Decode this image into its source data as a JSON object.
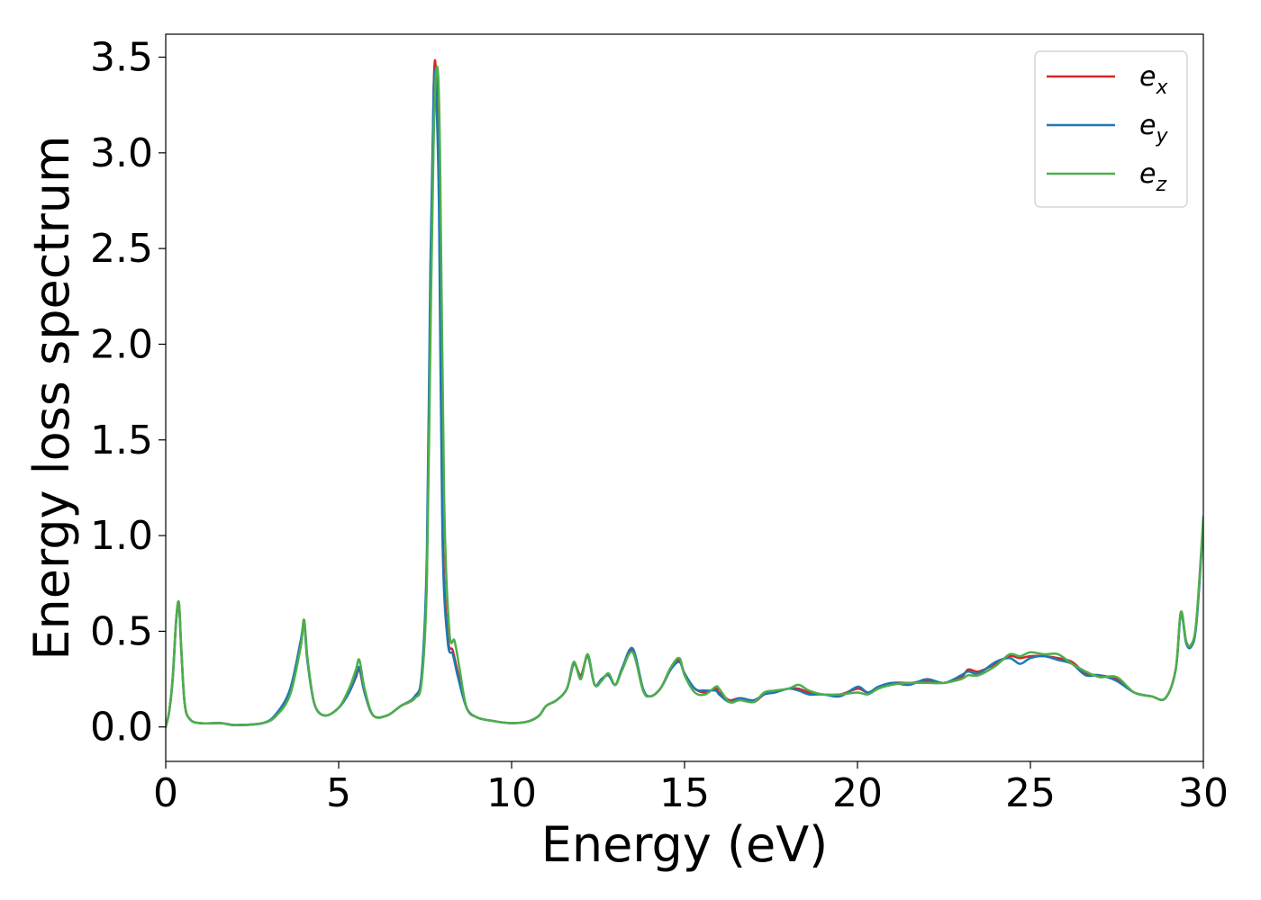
{
  "chart_data": {
    "type": "line",
    "xlabel": "Energy (eV)",
    "ylabel": "Energy loss spectrum",
    "xlim": [
      0,
      30
    ],
    "ylim": [
      -0.18,
      3.62
    ],
    "xticks": [
      0,
      5,
      10,
      15,
      20,
      25,
      30
    ],
    "xtick_labels": [
      "0",
      "5",
      "10",
      "15",
      "20",
      "25",
      "30"
    ],
    "yticks": [
      0.0,
      0.5,
      1.0,
      1.5,
      2.0,
      2.5,
      3.0,
      3.5
    ],
    "ytick_labels": [
      "0.0",
      "0.5",
      "1.0",
      "1.5",
      "2.0",
      "2.5",
      "3.0",
      "3.5"
    ],
    "grid": false,
    "legend_position": "top-right",
    "series": [
      {
        "name": "e_x",
        "label_base": "e",
        "label_sub": "x",
        "color": "#d62728",
        "x": [
          0,
          0.1,
          0.2,
          0.3,
          0.38,
          0.45,
          0.55,
          0.7,
          1.0,
          1.6,
          2.0,
          2.8,
          3.2,
          3.6,
          3.9,
          4.0,
          4.1,
          4.3,
          4.6,
          5.0,
          5.3,
          5.5,
          5.6,
          5.75,
          6.0,
          6.4,
          6.8,
          7.2,
          7.4,
          7.55,
          7.65,
          7.75,
          7.82,
          7.9,
          8.0,
          8.15,
          8.3,
          8.45,
          8.7,
          9.0,
          9.5,
          10.0,
          10.5,
          10.8,
          11.0,
          11.3,
          11.6,
          11.8,
          12.0,
          12.2,
          12.4,
          12.6,
          12.8,
          13.0,
          13.2,
          13.5,
          13.8,
          14.0,
          14.3,
          14.6,
          14.85,
          15.0,
          15.3,
          15.6,
          15.9,
          16.0,
          16.3,
          16.6,
          17.0,
          17.3,
          17.6,
          18.0,
          18.3,
          18.6,
          19.0,
          19.5,
          20.0,
          20.3,
          20.6,
          21.0,
          21.5,
          22.0,
          22.5,
          23.0,
          23.2,
          23.5,
          24.0,
          24.4,
          24.7,
          25.0,
          25.4,
          25.8,
          26.2,
          26.6,
          27.0,
          27.5,
          28.0,
          28.5,
          28.9,
          29.2,
          29.35,
          29.5,
          29.65,
          29.8,
          30.0
        ],
        "y": [
          0.0,
          0.08,
          0.25,
          0.55,
          0.65,
          0.4,
          0.12,
          0.04,
          0.02,
          0.02,
          0.01,
          0.02,
          0.06,
          0.18,
          0.42,
          0.56,
          0.35,
          0.12,
          0.06,
          0.1,
          0.18,
          0.26,
          0.3,
          0.18,
          0.06,
          0.06,
          0.11,
          0.15,
          0.25,
          0.8,
          2.2,
          3.36,
          3.4,
          2.9,
          1.1,
          0.48,
          0.4,
          0.28,
          0.1,
          0.05,
          0.03,
          0.02,
          0.03,
          0.06,
          0.11,
          0.14,
          0.2,
          0.33,
          0.27,
          0.37,
          0.22,
          0.25,
          0.27,
          0.22,
          0.3,
          0.4,
          0.2,
          0.16,
          0.2,
          0.3,
          0.35,
          0.28,
          0.2,
          0.18,
          0.2,
          0.18,
          0.14,
          0.15,
          0.13,
          0.17,
          0.18,
          0.2,
          0.2,
          0.18,
          0.17,
          0.17,
          0.2,
          0.18,
          0.2,
          0.23,
          0.23,
          0.24,
          0.23,
          0.26,
          0.3,
          0.29,
          0.33,
          0.37,
          0.36,
          0.37,
          0.37,
          0.36,
          0.34,
          0.28,
          0.27,
          0.25,
          0.18,
          0.16,
          0.15,
          0.3,
          0.6,
          0.45,
          0.43,
          0.55,
          1.08
        ]
      },
      {
        "name": "e_y",
        "label_base": "e",
        "label_sub": "y",
        "color": "#1f77b4",
        "x": [
          0,
          0.1,
          0.2,
          0.3,
          0.38,
          0.45,
          0.55,
          0.7,
          1.0,
          1.6,
          2.0,
          2.8,
          3.2,
          3.6,
          3.9,
          4.0,
          4.1,
          4.3,
          4.6,
          5.0,
          5.3,
          5.5,
          5.6,
          5.75,
          6.0,
          6.4,
          6.8,
          7.2,
          7.4,
          7.55,
          7.65,
          7.75,
          7.82,
          7.9,
          8.0,
          8.15,
          8.3,
          8.45,
          8.7,
          9.0,
          9.5,
          10.0,
          10.5,
          10.8,
          11.0,
          11.3,
          11.6,
          11.8,
          12.0,
          12.2,
          12.4,
          12.6,
          12.8,
          13.0,
          13.2,
          13.5,
          13.8,
          14.0,
          14.3,
          14.6,
          14.85,
          15.0,
          15.3,
          15.6,
          15.9,
          16.0,
          16.3,
          16.6,
          17.0,
          17.3,
          17.6,
          18.0,
          18.3,
          18.6,
          19.0,
          19.5,
          20.0,
          20.3,
          20.6,
          21.0,
          21.5,
          22.0,
          22.5,
          23.0,
          23.2,
          23.5,
          24.0,
          24.4,
          24.7,
          25.0,
          25.4,
          25.8,
          26.2,
          26.6,
          27.0,
          27.5,
          28.0,
          28.5,
          28.9,
          29.2,
          29.35,
          29.5,
          29.65,
          29.8,
          30.0
        ],
        "y": [
          0.0,
          0.08,
          0.25,
          0.55,
          0.64,
          0.4,
          0.12,
          0.04,
          0.02,
          0.02,
          0.01,
          0.02,
          0.07,
          0.2,
          0.45,
          0.54,
          0.34,
          0.12,
          0.06,
          0.1,
          0.18,
          0.27,
          0.31,
          0.18,
          0.06,
          0.06,
          0.11,
          0.16,
          0.28,
          0.9,
          2.4,
          3.35,
          3.3,
          2.7,
          1.0,
          0.45,
          0.38,
          0.26,
          0.1,
          0.05,
          0.03,
          0.02,
          0.03,
          0.06,
          0.11,
          0.14,
          0.2,
          0.33,
          0.26,
          0.37,
          0.22,
          0.25,
          0.27,
          0.22,
          0.31,
          0.41,
          0.2,
          0.16,
          0.2,
          0.3,
          0.34,
          0.28,
          0.2,
          0.19,
          0.19,
          0.17,
          0.13,
          0.15,
          0.14,
          0.17,
          0.18,
          0.2,
          0.19,
          0.17,
          0.17,
          0.16,
          0.21,
          0.18,
          0.21,
          0.23,
          0.22,
          0.25,
          0.23,
          0.27,
          0.29,
          0.28,
          0.34,
          0.36,
          0.33,
          0.36,
          0.37,
          0.35,
          0.33,
          0.27,
          0.27,
          0.24,
          0.18,
          0.16,
          0.15,
          0.3,
          0.59,
          0.44,
          0.42,
          0.54,
          1.07
        ]
      },
      {
        "name": "e_z",
        "label_base": "e",
        "label_sub": "z",
        "color": "#4daf4a",
        "x": [
          0,
          0.1,
          0.2,
          0.3,
          0.38,
          0.45,
          0.55,
          0.7,
          1.0,
          1.6,
          2.0,
          2.8,
          3.2,
          3.6,
          3.9,
          4.0,
          4.1,
          4.3,
          4.6,
          5.0,
          5.3,
          5.5,
          5.6,
          5.75,
          6.0,
          6.4,
          6.8,
          7.2,
          7.4,
          7.55,
          7.65,
          7.75,
          7.85,
          7.93,
          8.05,
          8.2,
          8.35,
          8.5,
          8.7,
          9.0,
          9.5,
          10.0,
          10.5,
          10.8,
          11.0,
          11.3,
          11.6,
          11.8,
          12.0,
          12.2,
          12.4,
          12.6,
          12.8,
          13.0,
          13.2,
          13.5,
          13.8,
          14.0,
          14.3,
          14.6,
          14.85,
          15.0,
          15.3,
          15.6,
          15.9,
          16.0,
          16.3,
          16.6,
          17.0,
          17.3,
          17.6,
          18.0,
          18.3,
          18.6,
          19.0,
          19.5,
          20.0,
          20.3,
          20.6,
          21.0,
          21.5,
          22.0,
          22.5,
          23.0,
          23.2,
          23.5,
          24.0,
          24.4,
          24.7,
          25.0,
          25.4,
          25.8,
          26.2,
          26.6,
          27.0,
          27.5,
          28.0,
          28.5,
          28.9,
          29.2,
          29.35,
          29.5,
          29.65,
          29.8,
          30.0
        ],
        "y": [
          0.0,
          0.08,
          0.26,
          0.56,
          0.65,
          0.41,
          0.12,
          0.04,
          0.02,
          0.02,
          0.01,
          0.02,
          0.06,
          0.17,
          0.42,
          0.56,
          0.36,
          0.12,
          0.06,
          0.1,
          0.2,
          0.3,
          0.35,
          0.2,
          0.06,
          0.06,
          0.11,
          0.15,
          0.24,
          0.75,
          2.0,
          3.1,
          3.45,
          3.0,
          1.2,
          0.5,
          0.45,
          0.3,
          0.1,
          0.05,
          0.03,
          0.02,
          0.03,
          0.06,
          0.11,
          0.14,
          0.2,
          0.34,
          0.25,
          0.38,
          0.22,
          0.24,
          0.28,
          0.22,
          0.3,
          0.39,
          0.19,
          0.16,
          0.2,
          0.31,
          0.36,
          0.27,
          0.18,
          0.17,
          0.21,
          0.2,
          0.13,
          0.14,
          0.13,
          0.18,
          0.19,
          0.2,
          0.22,
          0.19,
          0.17,
          0.17,
          0.18,
          0.17,
          0.2,
          0.22,
          0.23,
          0.23,
          0.23,
          0.25,
          0.27,
          0.27,
          0.32,
          0.38,
          0.37,
          0.39,
          0.38,
          0.38,
          0.33,
          0.29,
          0.26,
          0.26,
          0.18,
          0.16,
          0.15,
          0.3,
          0.6,
          0.45,
          0.43,
          0.56,
          1.1
        ]
      }
    ]
  }
}
